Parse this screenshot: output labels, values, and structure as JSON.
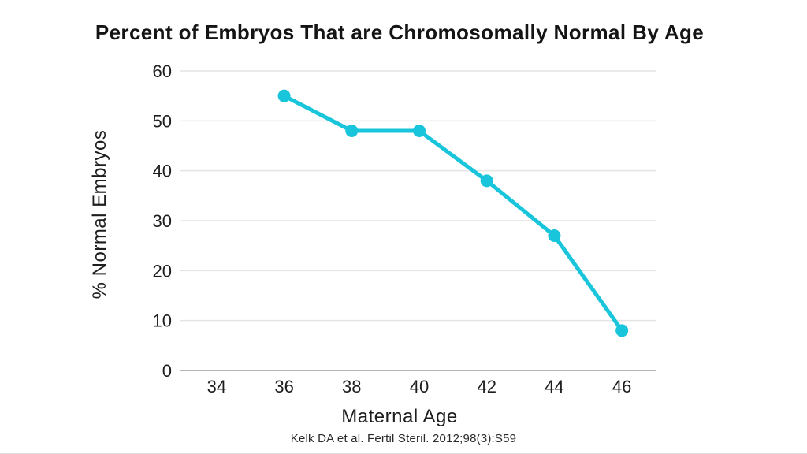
{
  "page": {
    "background": "#ffffff"
  },
  "chart_data": {
    "type": "line",
    "title": "Percent of Embryos That are Chromosomally Normal By Age",
    "xlabel": "Maternal Age",
    "ylabel": "% Normal Embryos",
    "source": "Kelk DA et al. Fertil Steril. 2012;98(3):S59",
    "x": [
      36,
      38,
      40,
      42,
      44,
      46
    ],
    "values": [
      55,
      48,
      48,
      38,
      27,
      8
    ],
    "x_ticks": [
      34,
      36,
      38,
      40,
      42,
      44,
      46
    ],
    "y_ticks": [
      0,
      10,
      20,
      30,
      40,
      50,
      60
    ],
    "xlim": [
      33,
      47
    ],
    "ylim": [
      0,
      60
    ],
    "grid": "horizontal-only",
    "legend": "none",
    "line_color": "#19C5DA",
    "marker": "circle",
    "marker_radius": 8,
    "line_width": 5,
    "gridline_color": "#e4e4e4",
    "axis_line_color": "#b5b5b5",
    "tick_font_size": 22
  }
}
